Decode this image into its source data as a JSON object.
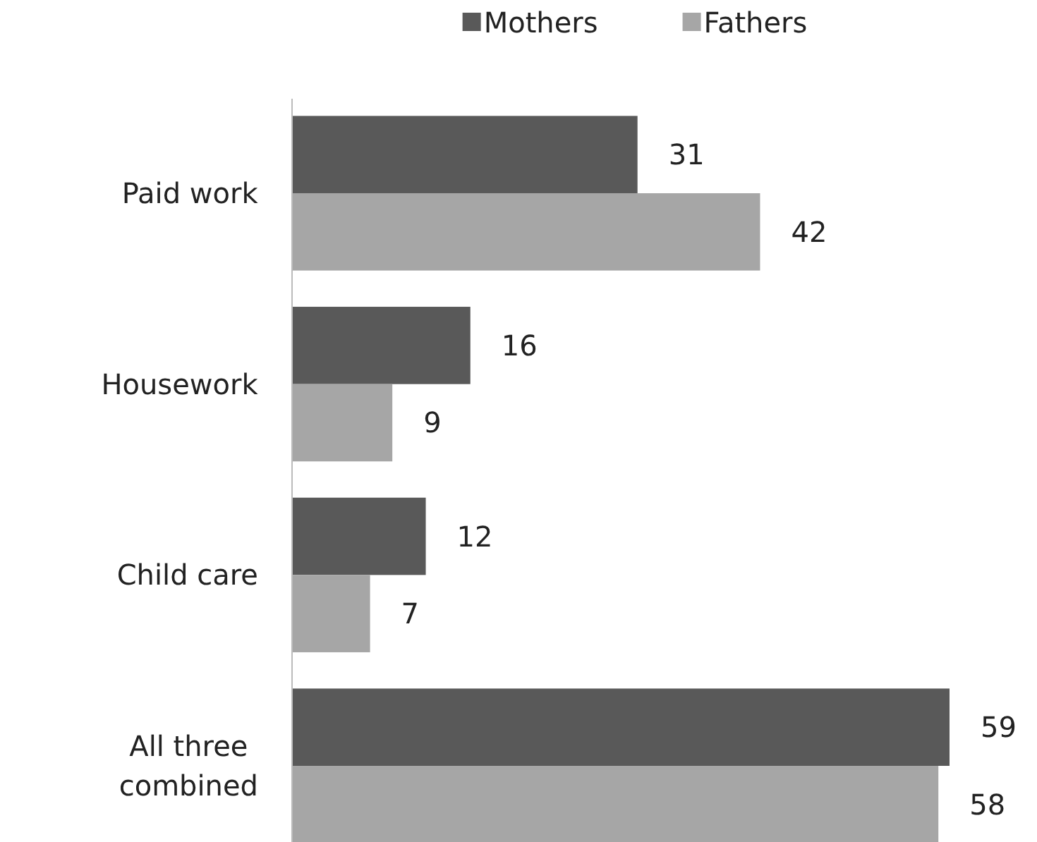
{
  "chart_data": {
    "type": "bar",
    "orientation": "horizontal",
    "categories": [
      "Paid work",
      "Housework",
      "Child care",
      "All three combined"
    ],
    "series": [
      {
        "name": "Mothers",
        "color": "#595959",
        "values": [
          31,
          16,
          12,
          59
        ]
      },
      {
        "name": "Fathers",
        "color": "#a6a6a6",
        "values": [
          42,
          9,
          7,
          58
        ]
      }
    ],
    "data_labels": true,
    "legend": "top"
  }
}
